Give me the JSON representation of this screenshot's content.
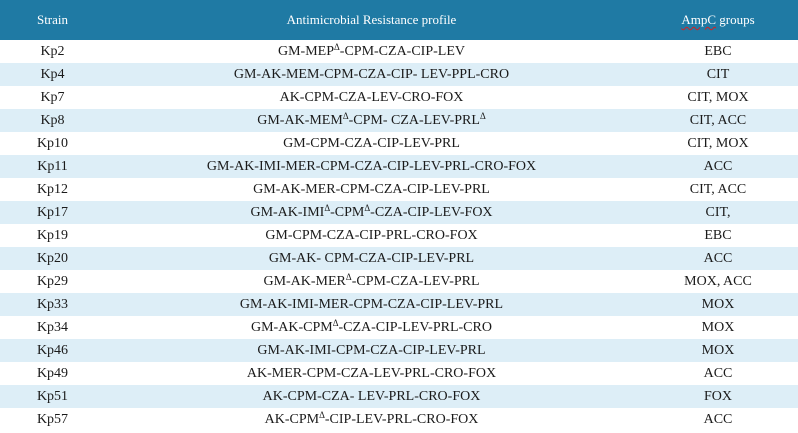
{
  "headers": {
    "strain": "Strain",
    "profile": "Antimicrobial Resistance profile",
    "ampc_squiggle": "AmpC",
    "ampc_rest": " groups"
  },
  "colors": {
    "header_bg": "#1f7aa4",
    "header_text": "#ffffff",
    "stripe": "#ddeef7",
    "spell_underline": "#d62020"
  },
  "rows": [
    {
      "strain": "Kp2",
      "profile": [
        "GM-MEP",
        "Δ",
        "-CPM-CZA-CIP-LEV"
      ],
      "ampc": "EBC"
    },
    {
      "strain": "Kp4",
      "profile": [
        "GM-AK-MEM-CPM-CZA-CIP- LEV-PPL-CRO"
      ],
      "ampc": "CIT"
    },
    {
      "strain": "Kp7",
      "profile": [
        "AK-CPM-CZA-LEV-CRO-FOX"
      ],
      "ampc": "CIT, MOX"
    },
    {
      "strain": "Kp8",
      "profile": [
        "GM-AK-MEM",
        "Δ",
        "-CPM- CZA-LEV-PRL",
        "Δ",
        ""
      ],
      "ampc": "CIT, ACC"
    },
    {
      "strain": "Kp10",
      "profile": [
        "GM-CPM-CZA-CIP-LEV-PRL"
      ],
      "ampc": "CIT, MOX"
    },
    {
      "strain": "Kp11",
      "profile": [
        "GM-AK-IMI-MER-CPM-CZA-CIP-LEV-PRL-CRO-FOX"
      ],
      "ampc": "ACC"
    },
    {
      "strain": "Kp12",
      "profile": [
        "GM-AK-MER-CPM-CZA-CIP-LEV-PRL"
      ],
      "ampc": "CIT, ACC"
    },
    {
      "strain": "Kp17",
      "profile": [
        "GM-AK-IMI",
        "Δ",
        "-CPM",
        "Δ",
        "-CZA-CIP-LEV-FOX"
      ],
      "ampc": "CIT,"
    },
    {
      "strain": "Kp19",
      "profile": [
        "GM-CPM-CZA-CIP-PRL-CRO-FOX"
      ],
      "ampc": "EBC"
    },
    {
      "strain": "Kp20",
      "profile": [
        "GM-AK- CPM-CZA-CIP-LEV-PRL"
      ],
      "ampc": "ACC"
    },
    {
      "strain": "Kp29",
      "profile": [
        "GM-AK-MER",
        "Δ",
        "-CPM-CZA-LEV-PRL"
      ],
      "ampc": "MOX, ACC"
    },
    {
      "strain": "Kp33",
      "profile": [
        "GM-AK-IMI-MER-CPM-CZA-CIP-LEV-PRL"
      ],
      "ampc": "MOX"
    },
    {
      "strain": "Kp34",
      "profile": [
        "GM-AK-CPM",
        "Δ",
        "-CZA-CIP-LEV-PRL-CRO"
      ],
      "ampc": "MOX"
    },
    {
      "strain": "Kp46",
      "profile": [
        "GM-AK-IMI-CPM-CZA-CIP-LEV-PRL"
      ],
      "ampc": "MOX"
    },
    {
      "strain": "Kp49",
      "profile": [
        "AK-MER-CPM-CZA-LEV-PRL-CRO-FOX"
      ],
      "ampc": "ACC"
    },
    {
      "strain": "Kp51",
      "profile": [
        "AK-CPM-CZA- LEV-PRL-CRO-FOX"
      ],
      "ampc": "FOX"
    },
    {
      "strain": "Kp57",
      "profile": [
        "AK-CPM",
        "Δ",
        "-CIP-LEV-PRL-CRO-FOX"
      ],
      "ampc": "ACC"
    }
  ]
}
